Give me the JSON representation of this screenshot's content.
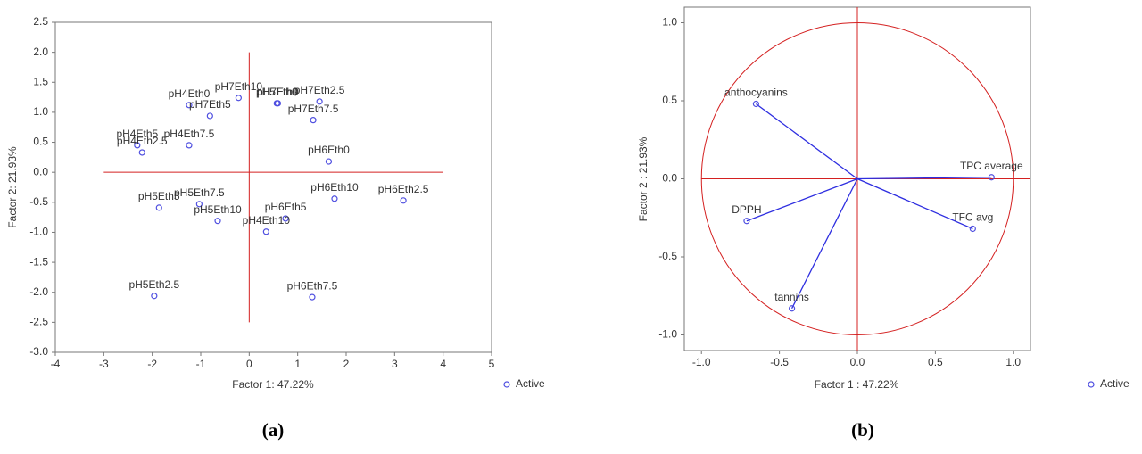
{
  "chart_data": [
    {
      "type": "scatter",
      "caption": "(a)",
      "x_label": "Factor 1: 47.22%",
      "y_label": "Factor 2: 21.93%",
      "xlim": [
        -4,
        5
      ],
      "ylim": [
        -3,
        2.5
      ],
      "xticks": [
        -4,
        -3,
        -2,
        -1,
        0,
        1,
        2,
        3,
        4,
        5
      ],
      "yticks": [
        {
          "value": -3,
          "label": "-3.0"
        },
        {
          "value": -2.5,
          "label": "-2.5"
        },
        {
          "value": -2,
          "label": "-2.0"
        },
        {
          "value": -1.5,
          "label": "-1.5"
        },
        {
          "value": -1,
          "label": "-1.0"
        },
        {
          "value": -0.5,
          "label": "-0.5"
        },
        {
          "value": 0,
          "label": "0.0"
        },
        {
          "value": 0.5,
          "label": "0.5"
        },
        {
          "value": 1,
          "label": "1.0"
        },
        {
          "value": 1.5,
          "label": "1.5"
        },
        {
          "value": 2,
          "label": "2.0"
        },
        {
          "value": 2.5,
          "label": "2.5"
        }
      ],
      "reference_lines": {
        "color": "#d42020",
        "vertical": {
          "x": 0,
          "ylim": [
            -2.5,
            2
          ]
        },
        "horizontal": {
          "y": 0,
          "xlim": [
            -3,
            4
          ]
        }
      },
      "series": [
        {
          "name": "Active",
          "color": "#4f4fe0",
          "labels": [
            "pH4Eth0",
            "pH7Eth10",
            "pH7Eth5",
            "pH5Eth0",
            "pH7Eth0",
            "pH7Eth2.5",
            "pH7Eth7.5",
            "pH4Eth5",
            "pH4Eth7.5",
            "pH4Eth2.5",
            "pH6Eth0",
            "pH5Eth5",
            "pH5Eth7.5",
            "pH5Eth10",
            "pH6Eth10",
            "pH6Eth2.5",
            "pH6Eth5",
            "pH4Eth10",
            "pH5Eth2.5",
            "pH6Eth7.5"
          ],
          "x": [
            -1.24,
            -0.22,
            -0.81,
            0.57,
            0.59,
            1.45,
            1.32,
            -2.31,
            -1.24,
            -2.21,
            1.64,
            -1.86,
            -1.03,
            -0.65,
            1.76,
            3.18,
            0.75,
            0.35,
            -1.96,
            1.3
          ],
          "values": [
            1.12,
            1.24,
            0.94,
            1.15,
            1.15,
            1.18,
            0.87,
            0.45,
            0.45,
            0.33,
            0.18,
            -0.59,
            -0.53,
            -0.81,
            -0.44,
            -0.47,
            -0.77,
            -0.99,
            -2.06,
            -2.08
          ]
        }
      ]
    },
    {
      "type": "correlation-circle",
      "caption": "(b)",
      "x_label": "Factor 1 : 47.22%",
      "y_label": "Factor 2 : 21.93%",
      "xlim": [
        -1.11,
        1.11
      ],
      "ylim": [
        -1.1,
        1.1
      ],
      "xticks": [
        {
          "value": -1,
          "label": "-1.0"
        },
        {
          "value": -0.5,
          "label": "-0.5"
        },
        {
          "value": 0,
          "label": "0.0"
        },
        {
          "value": 0.5,
          "label": "0.5"
        },
        {
          "value": 1,
          "label": "1.0"
        }
      ],
      "yticks": [
        {
          "value": -1,
          "label": "-1.0"
        },
        {
          "value": -0.5,
          "label": "-0.5"
        },
        {
          "value": 0,
          "label": "0.0"
        },
        {
          "value": 0.5,
          "label": "0.5"
        },
        {
          "value": 1,
          "label": "1.0"
        }
      ],
      "reference_lines": {
        "color": "#d42020",
        "vertical": {
          "x": 0,
          "ylim": [
            -1.1,
            1.1
          ]
        },
        "horizontal": {
          "y": 0,
          "xlim": [
            -1,
            1.11
          ]
        }
      },
      "circle_radius": 1,
      "vector_color": "#2e2ee0",
      "series": [
        {
          "name": "Active",
          "color": "#4f4fe0",
          "labels": [
            "anthocyanins",
            "TPC average",
            "DPPH",
            "TFC avg",
            "tannins"
          ],
          "x": [
            -0.65,
            0.86,
            -0.71,
            0.74,
            -0.42
          ],
          "values": [
            0.48,
            0.01,
            -0.27,
            -0.32,
            -0.83
          ]
        }
      ]
    }
  ]
}
